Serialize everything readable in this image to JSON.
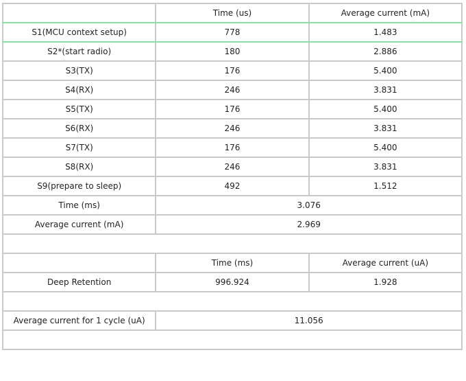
{
  "header": {
    "col1": "",
    "col2": "Time (us)",
    "col3": "Average current (mA)"
  },
  "rows": [
    {
      "label": "S1(MCU context setup)",
      "time": "778",
      "current": "1.483"
    },
    {
      "label": "S2*(start radio)",
      "time": "180",
      "current": "2.886"
    },
    {
      "label": "S3(TX)",
      "time": "176",
      "current": "5.400"
    },
    {
      "label": "S4(RX)",
      "time": "246",
      "current": "3.831"
    },
    {
      "label": "S5(TX)",
      "time": "176",
      "current": "5.400"
    },
    {
      "label": "S6(RX)",
      "time": "246",
      "current": "3.831"
    },
    {
      "label": "S7(TX)",
      "time": "176",
      "current": "5.400"
    },
    {
      "label": "S8(RX)",
      "time": "246",
      "current": "3.831"
    },
    {
      "label": "S9(prepare to sleep)",
      "time": "492",
      "current": "1.512"
    }
  ],
  "summary": {
    "time_label": "Time (ms)",
    "time_value": "3.076",
    "avg_label": "Average current (mA)",
    "avg_value": "2.969"
  },
  "retention_header": {
    "col1": "",
    "col2": "Time (ms)",
    "col3": "Average current (uA)"
  },
  "retention": {
    "label": "Deep Retention",
    "time": "996.924",
    "current": "1.928"
  },
  "cycle": {
    "label": "Average current for 1 cycle (uA)",
    "value": "11.056"
  },
  "colors": {
    "border": "#c9c9c9",
    "highlight": "#86e4a3"
  }
}
